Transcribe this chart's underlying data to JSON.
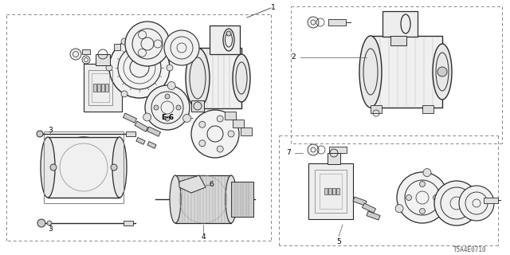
{
  "background_color": "#ffffff",
  "part_color": "#2a2a2a",
  "border_color": "#666666",
  "label_color": "#000000",
  "catalog_number": "T5A4E0710",
  "font_size_label": 6.5,
  "font_size_catalog": 5.5,
  "fig_width": 6.4,
  "fig_height": 3.2,
  "dpi": 100
}
